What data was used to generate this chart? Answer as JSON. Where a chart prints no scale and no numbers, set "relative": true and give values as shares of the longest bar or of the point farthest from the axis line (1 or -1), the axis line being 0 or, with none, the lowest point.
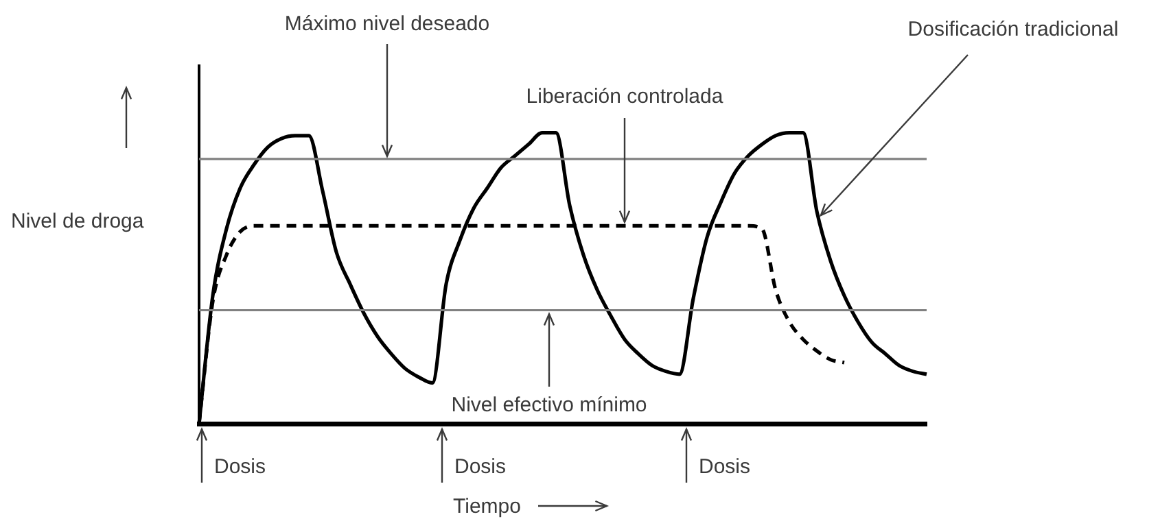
{
  "chart_data": {
    "type": "line",
    "relative": true,
    "xlabel": "Tiempo",
    "ylabel": "Nivel de droga",
    "grid": false,
    "legend": false,
    "marker": "none",
    "categories": [
      null,
      null,
      null,
      null,
      null,
      null,
      null,
      null,
      null,
      null,
      null,
      null,
      null,
      null,
      null,
      null,
      null,
      null,
      null,
      null,
      null,
      null,
      null,
      null,
      null,
      null,
      null,
      null,
      null,
      null,
      null,
      null,
      null,
      null,
      null,
      null,
      null,
      null,
      null,
      null,
      null,
      null,
      null,
      null,
      null,
      null,
      null,
      null,
      null,
      null,
      null,
      null,
      null,
      null
    ],
    "series": [
      {
        "color": "#000000",
        "line_style": "solid",
        "values": [
          0,
          0.44,
          0.67,
          0.81,
          0.89,
          0.95,
          0.98,
          0.99,
          0.99,
          0.8,
          0.59,
          0.48,
          0.38,
          0.3,
          0.24,
          0.19,
          0.16,
          0.14,
          0.48,
          0.63,
          0.74,
          0.81,
          0.88,
          0.92,
          0.96,
          1,
          1,
          0.75,
          0.58,
          0.46,
          0.37,
          0.29,
          0.24,
          0.2,
          0.18,
          0.17,
          0.43,
          0.64,
          0.76,
          0.86,
          0.92,
          0.96,
          0.99,
          1,
          1,
          0.73,
          0.56,
          0.44,
          0.35,
          0.28,
          0.24,
          0.2,
          0.18,
          0.17
        ]
      },
      {
        "color": "#000000",
        "line_style": "dashed",
        "values": [
          0,
          0.42,
          0.58,
          0.66,
          0.68,
          0.68,
          0.68,
          0.68,
          0.68,
          0.68,
          0.68,
          0.68,
          0.68,
          0.68,
          0.68,
          0.68,
          0.68,
          0.68,
          0.68,
          0.68,
          0.68,
          0.68,
          0.68,
          0.68,
          0.68,
          0.68,
          0.68,
          0.68,
          0.68,
          0.68,
          0.68,
          0.68,
          0.68,
          0.68,
          0.68,
          0.68,
          0.68,
          0.68,
          0.68,
          0.68,
          0.68,
          0.67,
          0.46,
          0.35,
          0.29,
          0.25,
          0.22,
          0.21,
          null,
          null,
          null,
          null,
          null,
          null
        ]
      }
    ],
    "ref_lines": [
      {
        "axis": "y",
        "value": 0.91,
        "color": "#808080"
      },
      {
        "axis": "y",
        "value": 0.39,
        "color": "#808080"
      }
    ],
    "annotations": [
      "Máximo nivel deseado",
      "Liberación controlada",
      "Dosificación tradicional",
      "Nivel efectivo mínimo",
      "Dosis",
      "Dosis",
      "Dosis"
    ]
  }
}
